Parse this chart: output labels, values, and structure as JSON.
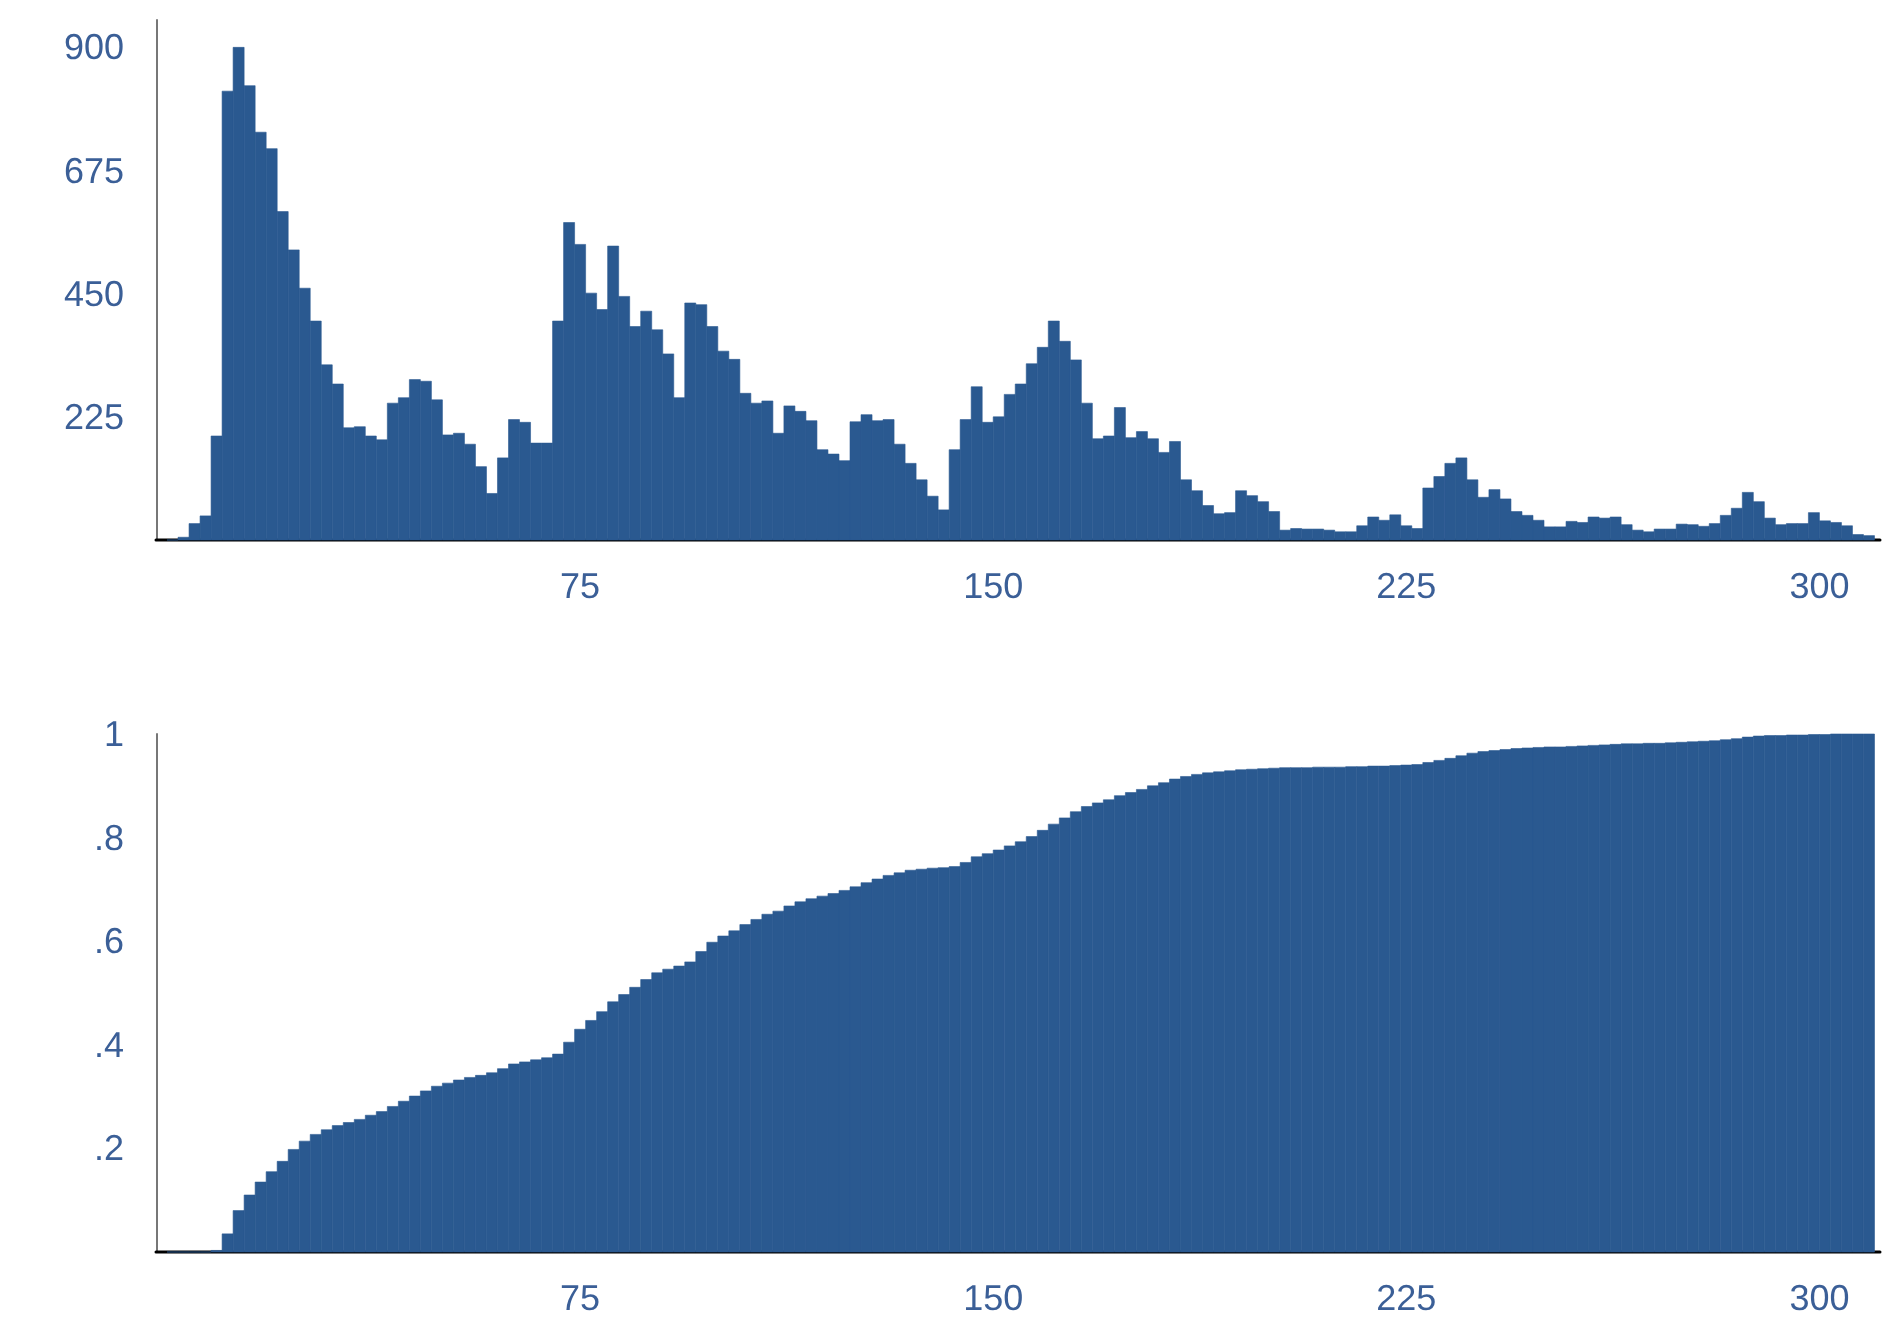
{
  "chart_data": [
    {
      "type": "histogram",
      "color": "#2a5990",
      "xlim": [
        -2,
        311
      ],
      "xticks": [
        75,
        150,
        225,
        300
      ],
      "ylim": [
        0,
        950
      ],
      "yticks": [
        225,
        450,
        675,
        900
      ],
      "grid": false,
      "bins": [
        0,
        2,
        4,
        6,
        8,
        10,
        12,
        14,
        16,
        18,
        20,
        22,
        24,
        26,
        28,
        30,
        32,
        34,
        36,
        38,
        40,
        42,
        44,
        46,
        48,
        50,
        52,
        54,
        56,
        58,
        60,
        62,
        64,
        66,
        68,
        70,
        72,
        74,
        76,
        78,
        80,
        82,
        84,
        86,
        88,
        90,
        92,
        94,
        96,
        98,
        100,
        102,
        104,
        106,
        108,
        110,
        112,
        114,
        116,
        118,
        120,
        122,
        124,
        126,
        128,
        130,
        132,
        134,
        136,
        138,
        140,
        142,
        144,
        146,
        148,
        150,
        152,
        154,
        156,
        158,
        160,
        162,
        164,
        166,
        168,
        170,
        172,
        174,
        176,
        178,
        180,
        182,
        184,
        186,
        188,
        190,
        192,
        194,
        196,
        198,
        200,
        202,
        204,
        206,
        208,
        210,
        212,
        214,
        216,
        218,
        220,
        222,
        224,
        226,
        228,
        230,
        232,
        234,
        236,
        238,
        240,
        242,
        244,
        246,
        248,
        250,
        252,
        254,
        256,
        258,
        260,
        262,
        264,
        266,
        268,
        270,
        272,
        274,
        276,
        278,
        280,
        282,
        284,
        286,
        288,
        290,
        292,
        294,
        296,
        298,
        300,
        302,
        304,
        306,
        308,
        310
      ],
      "values": [
        0,
        5,
        30,
        44,
        190,
        820,
        900,
        830,
        745,
        715,
        600,
        530,
        460,
        400,
        320,
        285,
        205,
        207,
        190,
        183,
        250,
        260,
        293,
        290,
        256,
        192,
        195,
        175,
        134,
        85,
        150,
        220,
        215,
        177,
        177,
        400,
        580,
        540,
        451,
        421,
        537,
        445,
        390,
        418,
        384,
        340,
        260,
        433,
        430,
        390,
        345,
        330,
        268,
        250,
        254,
        195,
        245,
        235,
        218,
        165,
        157,
        145,
        216,
        229,
        218,
        220,
        175,
        140,
        110,
        80,
        55,
        165,
        220,
        280,
        215,
        225,
        266,
        285,
        322,
        352,
        400,
        363,
        329,
        250,
        185,
        190,
        242,
        187,
        198,
        185,
        160,
        180,
        110,
        90,
        63,
        48,
        50,
        90,
        81,
        70,
        52,
        18,
        21,
        20,
        20,
        18,
        15,
        15,
        26,
        42,
        36,
        46,
        26,
        21,
        95,
        116,
        140,
        150,
        110,
        78,
        92,
        75,
        52,
        45,
        36,
        24,
        24,
        34,
        32,
        42,
        40,
        42,
        28,
        18,
        15,
        20,
        20,
        29,
        28,
        25,
        30,
        45,
        58,
        87,
        70,
        40,
        28,
        30,
        30,
        50,
        35,
        32,
        26,
        10,
        8
      ]
    },
    {
      "type": "histogram",
      "color": "#2a5990",
      "xlim": [
        -2,
        311
      ],
      "xticks": [
        75,
        150,
        225,
        300
      ],
      "ylim": [
        0,
        1
      ],
      "yticks": [
        {
          "value": 0.2,
          "label": ".2"
        },
        {
          "value": 0.4,
          "label": ".4"
        },
        {
          "value": 0.6,
          "label": ".6"
        },
        {
          "value": 0.8,
          "label": ".8"
        },
        1
      ],
      "grid": false,
      "bins": [
        0,
        2,
        4,
        6,
        8,
        10,
        12,
        14,
        16,
        18,
        20,
        22,
        24,
        26,
        28,
        30,
        32,
        34,
        36,
        38,
        40,
        42,
        44,
        46,
        48,
        50,
        52,
        54,
        56,
        58,
        60,
        62,
        64,
        66,
        68,
        70,
        72,
        74,
        76,
        78,
        80,
        82,
        84,
        86,
        88,
        90,
        92,
        94,
        96,
        98,
        100,
        102,
        104,
        106,
        108,
        110,
        112,
        114,
        116,
        118,
        120,
        122,
        124,
        126,
        128,
        130,
        132,
        134,
        136,
        138,
        140,
        142,
        144,
        146,
        148,
        150,
        152,
        154,
        156,
        158,
        160,
        162,
        164,
        166,
        168,
        170,
        172,
        174,
        176,
        178,
        180,
        182,
        184,
        186,
        188,
        190,
        192,
        194,
        196,
        198,
        200,
        202,
        204,
        206,
        208,
        210,
        212,
        214,
        216,
        218,
        220,
        222,
        224,
        226,
        228,
        230,
        232,
        234,
        236,
        238,
        240,
        242,
        244,
        246,
        248,
        250,
        252,
        254,
        256,
        258,
        260,
        262,
        264,
        266,
        268,
        270,
        272,
        274,
        276,
        278,
        280,
        282,
        284,
        286,
        288,
        290,
        292,
        294,
        296,
        298,
        300,
        302,
        304,
        306,
        308,
        310
      ],
      "values": [
        0,
        0,
        0,
        0,
        0.003,
        0.035,
        0.08,
        0.11,
        0.135,
        0.155,
        0.175,
        0.198,
        0.214,
        0.227,
        0.236,
        0.244,
        0.25,
        0.256,
        0.264,
        0.271,
        0.281,
        0.291,
        0.301,
        0.311,
        0.32,
        0.326,
        0.332,
        0.337,
        0.341,
        0.346,
        0.354,
        0.363,
        0.367,
        0.371,
        0.375,
        0.382,
        0.405,
        0.43,
        0.447,
        0.464,
        0.483,
        0.497,
        0.511,
        0.526,
        0.539,
        0.546,
        0.552,
        0.56,
        0.58,
        0.598,
        0.61,
        0.62,
        0.632,
        0.642,
        0.652,
        0.658,
        0.668,
        0.676,
        0.682,
        0.687,
        0.692,
        0.698,
        0.705,
        0.713,
        0.72,
        0.727,
        0.732,
        0.737,
        0.739,
        0.741,
        0.742,
        0.744,
        0.752,
        0.763,
        0.769,
        0.776,
        0.784,
        0.792,
        0.802,
        0.814,
        0.826,
        0.838,
        0.85,
        0.86,
        0.867,
        0.873,
        0.881,
        0.887,
        0.893,
        0.9,
        0.906,
        0.913,
        0.918,
        0.922,
        0.925,
        0.927,
        0.929,
        0.931,
        0.932,
        0.933,
        0.934,
        0.935,
        0.935,
        0.935,
        0.936,
        0.936,
        0.936,
        0.937,
        0.937,
        0.938,
        0.938,
        0.939,
        0.94,
        0.941,
        0.945,
        0.949,
        0.953,
        0.958,
        0.963,
        0.966,
        0.968,
        0.97,
        0.972,
        0.973,
        0.974,
        0.975,
        0.975,
        0.976,
        0.977,
        0.978,
        0.979,
        0.98,
        0.981,
        0.981,
        0.982,
        0.982,
        0.983,
        0.984,
        0.985,
        0.986,
        0.987,
        0.989,
        0.991,
        0.994,
        0.996,
        0.997,
        0.997,
        0.998,
        0.998,
        0.999,
        0.999,
        1,
        1,
        1,
        1
      ]
    }
  ]
}
